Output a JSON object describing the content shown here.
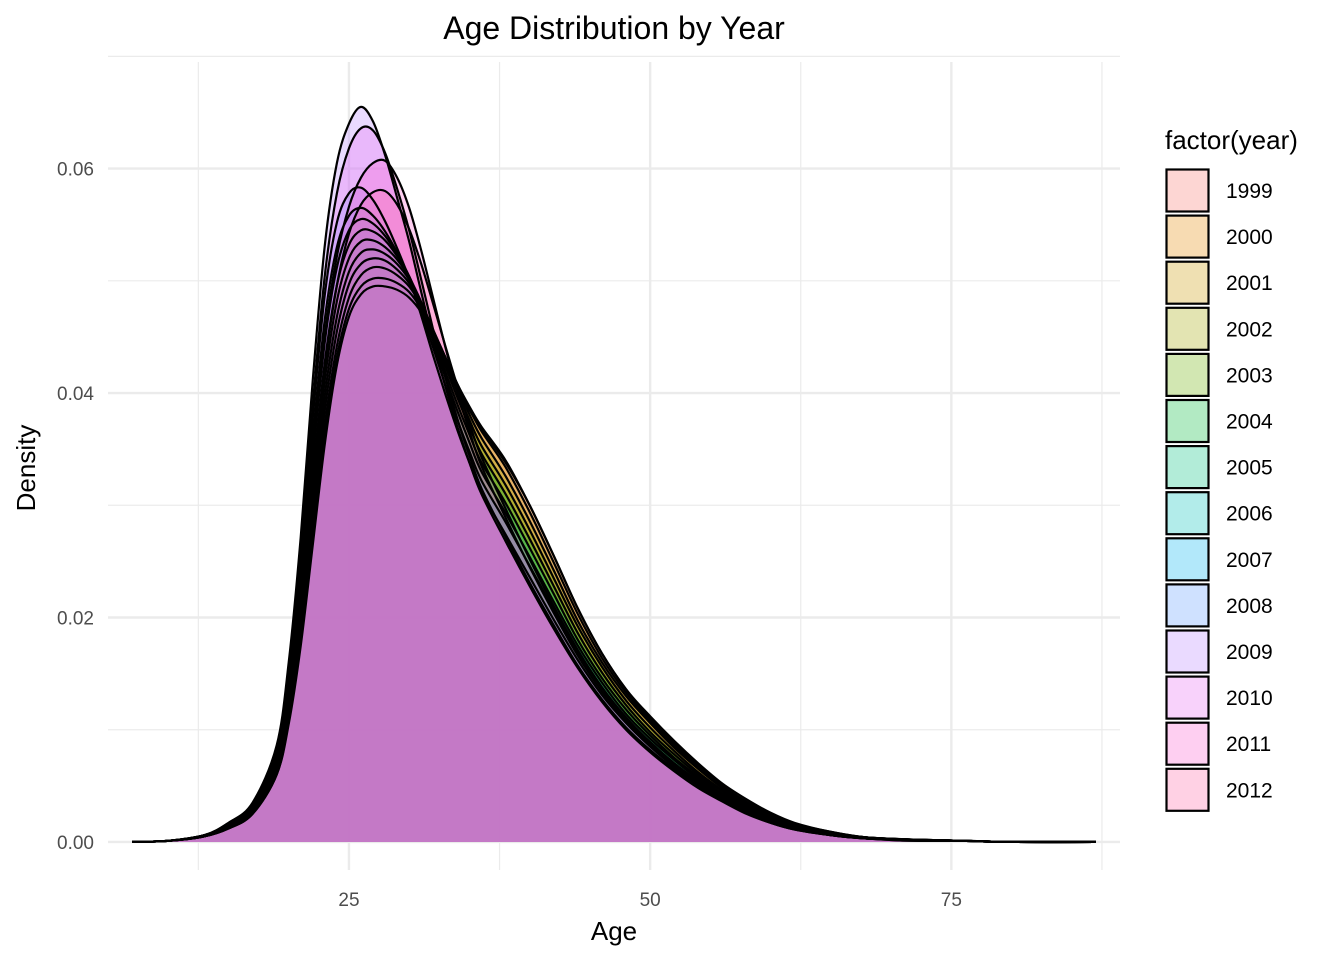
{
  "chart_data": {
    "type": "area",
    "subtype": "density",
    "title": "Age Distribution by Year",
    "xlabel": "Age",
    "ylabel": "Density",
    "xlim": [
      5,
      89
    ],
    "ylim": [
      -0.0025,
      0.0695
    ],
    "x_ticks": [
      25,
      50,
      75
    ],
    "y_ticks": [
      0.0,
      0.02,
      0.04,
      0.06
    ],
    "y_tick_labels": [
      "0.00",
      "0.02",
      "0.04",
      "0.06"
    ],
    "grid": true,
    "legend": {
      "title": "factor(year)",
      "position": "right"
    },
    "x": [
      7,
      10,
      13,
      15,
      17,
      19,
      20,
      21,
      22,
      23,
      24,
      25,
      26,
      27,
      28,
      29,
      30,
      31,
      32,
      33,
      34,
      35,
      36,
      38,
      40,
      42,
      44,
      46,
      48,
      50,
      52,
      54,
      56,
      58,
      60,
      62,
      65,
      68,
      72,
      76,
      80,
      87
    ],
    "series": [
      {
        "name": "1999",
        "color": "#F8766D",
        "values": [
          0,
          0.0001,
          0.0005,
          0.0012,
          0.0025,
          0.006,
          0.0105,
          0.0175,
          0.0265,
          0.0355,
          0.0425,
          0.0468,
          0.0488,
          0.0495,
          0.0495,
          0.0492,
          0.0485,
          0.0472,
          0.0452,
          0.0428,
          0.0405,
          0.0385,
          0.0368,
          0.0338,
          0.03,
          0.0255,
          0.0208,
          0.0168,
          0.0136,
          0.0112,
          0.009,
          0.007,
          0.0052,
          0.0038,
          0.0026,
          0.0017,
          0.0009,
          0.0004,
          0.0002,
          0.0001,
          0,
          0
        ]
      },
      {
        "name": "2000",
        "color": "#E58700",
        "values": [
          0,
          0.0001,
          0.0005,
          0.0012,
          0.0025,
          0.006,
          0.0108,
          0.018,
          0.0272,
          0.0362,
          0.0432,
          0.0475,
          0.0495,
          0.0502,
          0.0502,
          0.0498,
          0.049,
          0.0475,
          0.0455,
          0.0432,
          0.0408,
          0.0388,
          0.037,
          0.034,
          0.03,
          0.0255,
          0.0208,
          0.0168,
          0.0136,
          0.011,
          0.0088,
          0.0068,
          0.005,
          0.0036,
          0.0025,
          0.0016,
          0.0009,
          0.0004,
          0.0002,
          0.0001,
          0,
          0
        ]
      },
      {
        "name": "2001",
        "color": "#C99800",
        "values": [
          0,
          0.0001,
          0.0005,
          0.0013,
          0.0026,
          0.0062,
          0.011,
          0.0185,
          0.028,
          0.0372,
          0.0442,
          0.0485,
          0.0505,
          0.0512,
          0.0511,
          0.0505,
          0.0495,
          0.0478,
          0.0456,
          0.0432,
          0.0408,
          0.0386,
          0.0366,
          0.0334,
          0.0294,
          0.0249,
          0.0203,
          0.0164,
          0.0133,
          0.0108,
          0.0086,
          0.0066,
          0.0049,
          0.0035,
          0.0024,
          0.0016,
          0.0008,
          0.0004,
          0.0002,
          0.0001,
          0,
          0
        ]
      },
      {
        "name": "2002",
        "color": "#A3A500",
        "values": [
          0,
          0.0001,
          0.0005,
          0.0013,
          0.0027,
          0.0064,
          0.0114,
          0.0192,
          0.029,
          0.0385,
          0.0455,
          0.0497,
          0.0515,
          0.052,
          0.0518,
          0.051,
          0.0498,
          0.048,
          0.0456,
          0.043,
          0.0405,
          0.0381,
          0.036,
          0.0326,
          0.0286,
          0.0242,
          0.0197,
          0.016,
          0.013,
          0.0106,
          0.0084,
          0.0065,
          0.0048,
          0.0034,
          0.0023,
          0.0015,
          0.0008,
          0.0004,
          0.0002,
          0.0001,
          0,
          0
        ]
      },
      {
        "name": "2003",
        "color": "#6BB100",
        "values": [
          0,
          0.0001,
          0.0005,
          0.0014,
          0.0028,
          0.0066,
          0.0118,
          0.0198,
          0.03,
          0.0398,
          0.0468,
          0.0508,
          0.0525,
          0.0528,
          0.0524,
          0.0515,
          0.0501,
          0.0481,
          0.0455,
          0.0428,
          0.0401,
          0.0376,
          0.0353,
          0.0318,
          0.0278,
          0.0235,
          0.0192,
          0.0156,
          0.0126,
          0.0102,
          0.0081,
          0.0062,
          0.0046,
          0.0033,
          0.0022,
          0.0014,
          0.0008,
          0.0004,
          0.0002,
          0.0001,
          0,
          0
        ]
      },
      {
        "name": "2004",
        "color": "#00BA38",
        "values": [
          0,
          0.0001,
          0.0005,
          0.0014,
          0.0029,
          0.0068,
          0.0122,
          0.0206,
          0.0312,
          0.0412,
          0.0482,
          0.052,
          0.0535,
          0.0536,
          0.053,
          0.0519,
          0.0503,
          0.0481,
          0.0453,
          0.0424,
          0.0396,
          0.037,
          0.0346,
          0.031,
          0.027,
          0.0228,
          0.0186,
          0.0151,
          0.0122,
          0.0098,
          0.0078,
          0.006,
          0.0045,
          0.0032,
          0.0022,
          0.0014,
          0.0008,
          0.0004,
          0.0002,
          0.0001,
          0,
          0
        ]
      },
      {
        "name": "2005",
        "color": "#00BF7D",
        "values": [
          0,
          0.0001,
          0.0006,
          0.0015,
          0.003,
          0.007,
          0.0128,
          0.0216,
          0.0326,
          0.0428,
          0.0496,
          0.0532,
          0.0545,
          0.0544,
          0.0536,
          0.0522,
          0.0504,
          0.0479,
          0.045,
          0.0419,
          0.039,
          0.0363,
          0.0338,
          0.0302,
          0.0262,
          0.0221,
          0.018,
          0.0146,
          0.0118,
          0.0095,
          0.0075,
          0.0058,
          0.0043,
          0.0031,
          0.0021,
          0.0013,
          0.0007,
          0.0004,
          0.0002,
          0.0001,
          0,
          0
        ]
      },
      {
        "name": "2006",
        "color": "#00C0B8",
        "values": [
          0,
          0.0001,
          0.0006,
          0.0015,
          0.0031,
          0.0073,
          0.0134,
          0.0226,
          0.0342,
          0.0446,
          0.0512,
          0.0545,
          0.0555,
          0.0551,
          0.054,
          0.0524,
          0.0504,
          0.0477,
          0.0446,
          0.0414,
          0.0384,
          0.0356,
          0.033,
          0.0293,
          0.0254,
          0.0214,
          0.0175,
          0.0142,
          0.0114,
          0.0092,
          0.0073,
          0.0056,
          0.0042,
          0.003,
          0.002,
          0.0013,
          0.0007,
          0.0003,
          0.0002,
          0.0001,
          0,
          0
        ]
      },
      {
        "name": "2007",
        "color": "#00B4EF",
        "values": [
          0,
          0.0001,
          0.0006,
          0.0016,
          0.0032,
          0.0076,
          0.014,
          0.0238,
          0.036,
          0.0466,
          0.053,
          0.0558,
          0.0565,
          0.0558,
          0.0544,
          0.0525,
          0.0502,
          0.0473,
          0.044,
          0.0407,
          0.0376,
          0.0348,
          0.0322,
          0.0285,
          0.0246,
          0.0207,
          0.0169,
          0.0137,
          0.011,
          0.0089,
          0.007,
          0.0054,
          0.004,
          0.0029,
          0.0019,
          0.0012,
          0.0007,
          0.0003,
          0.0002,
          0.0001,
          0,
          0
        ]
      },
      {
        "name": "2008",
        "color": "#619CFF",
        "values": [
          0,
          0.0001,
          0.0006,
          0.0016,
          0.0033,
          0.008,
          0.0148,
          0.025,
          0.0378,
          0.0488,
          0.0552,
          0.0578,
          0.0583,
          0.0572,
          0.0553,
          0.0529,
          0.0502,
          0.0469,
          0.0433,
          0.0399,
          0.0367,
          0.0338,
          0.0312,
          0.0274,
          0.0236,
          0.0198,
          0.0162,
          0.0131,
          0.0106,
          0.0085,
          0.0067,
          0.0052,
          0.0038,
          0.0027,
          0.0018,
          0.0012,
          0.0006,
          0.0003,
          0.0002,
          0.0001,
          0,
          0
        ]
      },
      {
        "name": "2009",
        "color": "#B983FF",
        "values": [
          0,
          0.0001,
          0.0006,
          0.0017,
          0.0035,
          0.0086,
          0.016,
          0.0272,
          0.0412,
          0.0532,
          0.0605,
          0.064,
          0.0655,
          0.0642,
          0.0612,
          0.0574,
          0.0535,
          0.049,
          0.0446,
          0.0406,
          0.037,
          0.0338,
          0.031,
          0.0268,
          0.0228,
          0.019,
          0.0155,
          0.0125,
          0.01,
          0.008,
          0.0063,
          0.0048,
          0.0036,
          0.0025,
          0.0017,
          0.0011,
          0.0006,
          0.0003,
          0.0001,
          0.0001,
          0,
          0
        ]
      },
      {
        "name": "2010",
        "color": "#E76BF3",
        "values": [
          0,
          0.0001,
          0.0006,
          0.0017,
          0.0034,
          0.0082,
          0.0152,
          0.0258,
          0.039,
          0.0505,
          0.0578,
          0.0618,
          0.0636,
          0.0634,
          0.0614,
          0.0582,
          0.0545,
          0.0501,
          0.0456,
          0.0414,
          0.0377,
          0.0344,
          0.0315,
          0.0272,
          0.0231,
          0.0193,
          0.0157,
          0.0127,
          0.0102,
          0.0082,
          0.0065,
          0.005,
          0.0037,
          0.0026,
          0.0017,
          0.0011,
          0.0006,
          0.0003,
          0.0001,
          0.0001,
          0,
          0
        ]
      },
      {
        "name": "2011",
        "color": "#FD61D1",
        "values": [
          0,
          0.0001,
          0.0005,
          0.0015,
          0.0031,
          0.0074,
          0.0136,
          0.023,
          0.0348,
          0.0452,
          0.0522,
          0.0566,
          0.0592,
          0.0605,
          0.0607,
          0.0592,
          0.0565,
          0.0527,
          0.0484,
          0.0441,
          0.0401,
          0.0366,
          0.0335,
          0.0289,
          0.0245,
          0.0204,
          0.0166,
          0.0134,
          0.0108,
          0.0087,
          0.0069,
          0.0053,
          0.0039,
          0.0028,
          0.0019,
          0.0012,
          0.0006,
          0.0003,
          0.0002,
          0.0001,
          0,
          0
        ]
      },
      {
        "name": "2012",
        "color": "#FF67A4",
        "values": [
          0,
          0.0001,
          0.0005,
          0.0014,
          0.0029,
          0.0069,
          0.0127,
          0.0214,
          0.0324,
          0.0424,
          0.0496,
          0.0542,
          0.0568,
          0.0579,
          0.058,
          0.0568,
          0.0546,
          0.0515,
          0.0479,
          0.0442,
          0.0406,
          0.0373,
          0.0343,
          0.0297,
          0.0252,
          0.021,
          0.0171,
          0.0138,
          0.0111,
          0.0089,
          0.007,
          0.0054,
          0.004,
          0.0029,
          0.0019,
          0.0012,
          0.0006,
          0.0003,
          0.0002,
          0.0001,
          0,
          0
        ]
      }
    ]
  }
}
